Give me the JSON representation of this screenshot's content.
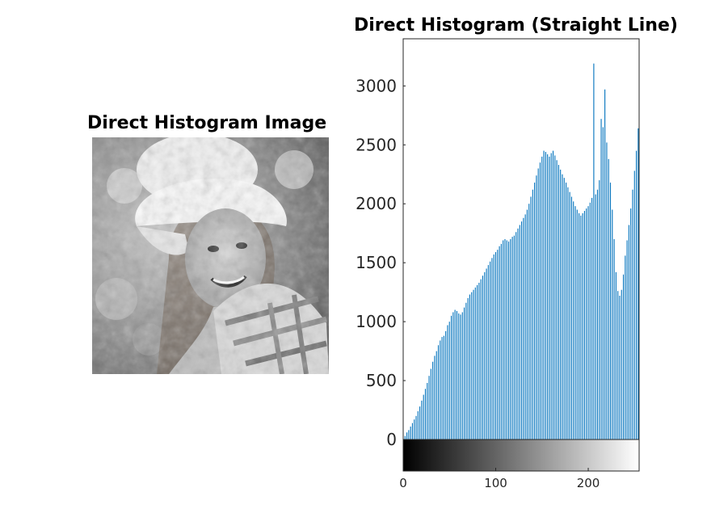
{
  "image_panel": {
    "title": "Direct Histogram Image"
  },
  "chart_data": {
    "type": "bar",
    "title": "Direct Histogram (Straight Line)",
    "xlabel": "",
    "ylabel": "",
    "xlim": [
      0,
      255
    ],
    "ylim": [
      0,
      3400
    ],
    "yticks": [
      0,
      500,
      1000,
      1500,
      2000,
      2500,
      3000
    ],
    "xticks": [
      0,
      100,
      200
    ],
    "bar_color": "#0072BD",
    "colorbar": "grayscale",
    "x": [
      2,
      4,
      6,
      8,
      10,
      12,
      14,
      16,
      18,
      20,
      22,
      24,
      26,
      28,
      30,
      32,
      34,
      36,
      38,
      40,
      42,
      44,
      46,
      48,
      50,
      52,
      54,
      56,
      58,
      60,
      62,
      64,
      66,
      68,
      70,
      72,
      74,
      76,
      78,
      80,
      82,
      84,
      86,
      88,
      90,
      92,
      94,
      96,
      98,
      100,
      102,
      104,
      106,
      108,
      110,
      112,
      114,
      116,
      118,
      120,
      122,
      124,
      126,
      128,
      130,
      132,
      134,
      136,
      138,
      140,
      142,
      144,
      146,
      148,
      150,
      152,
      154,
      156,
      158,
      160,
      162,
      164,
      166,
      168,
      170,
      172,
      174,
      176,
      178,
      180,
      182,
      184,
      186,
      188,
      190,
      192,
      194,
      196,
      198,
      200,
      202,
      204,
      206,
      208,
      210,
      212,
      214,
      216,
      218,
      220,
      222,
      224,
      226,
      228,
      230,
      232,
      234,
      236,
      238,
      240,
      242,
      244,
      246,
      248,
      250,
      252,
      254
    ],
    "values": [
      30,
      60,
      80,
      110,
      140,
      170,
      200,
      240,
      280,
      330,
      380,
      430,
      480,
      540,
      600,
      660,
      710,
      750,
      800,
      840,
      870,
      880,
      920,
      970,
      1000,
      1050,
      1080,
      1100,
      1090,
      1070,
      1060,
      1080,
      1120,
      1160,
      1200,
      1230,
      1250,
      1270,
      1290,
      1310,
      1330,
      1360,
      1390,
      1420,
      1450,
      1480,
      1510,
      1540,
      1570,
      1590,
      1610,
      1640,
      1660,
      1690,
      1700,
      1690,
      1680,
      1700,
      1720,
      1730,
      1760,
      1790,
      1820,
      1850,
      1880,
      1910,
      1950,
      2000,
      2060,
      2120,
      2180,
      2240,
      2300,
      2350,
      2400,
      2450,
      2440,
      2420,
      2400,
      2430,
      2450,
      2410,
      2370,
      2330,
      2290,
      2250,
      2220,
      2180,
      2140,
      2100,
      2060,
      2020,
      1980,
      1950,
      1920,
      1900,
      1920,
      1940,
      1960,
      1980,
      2010,
      2050,
      3190,
      2080,
      2120,
      2200,
      2720,
      2650,
      2970,
      2520,
      2380,
      2180,
      1950,
      1700,
      1420,
      1260,
      1220,
      1270,
      1400,
      1560,
      1690,
      1820,
      1960,
      2120,
      2280,
      2450,
      2640
    ]
  }
}
